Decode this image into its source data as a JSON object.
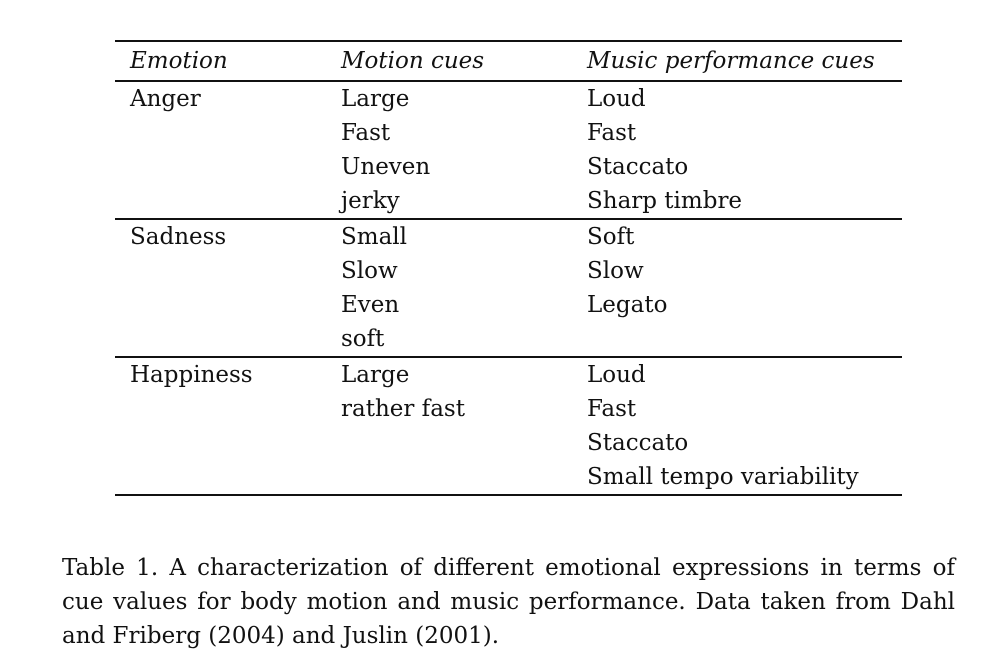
{
  "table": {
    "headers": [
      "Emotion",
      "Motion cues",
      "Music performance cues"
    ],
    "groups": [
      {
        "emotion": "Anger",
        "rows": [
          [
            "Large",
            "Loud"
          ],
          [
            "Fast",
            "Fast"
          ],
          [
            "Uneven",
            "Staccato"
          ],
          [
            "jerky",
            "Sharp timbre"
          ]
        ]
      },
      {
        "emotion": "Sadness",
        "rows": [
          [
            "Small",
            "Soft"
          ],
          [
            "Slow",
            "Slow"
          ],
          [
            "Even",
            "Legato"
          ],
          [
            "soft",
            ""
          ]
        ]
      },
      {
        "emotion": "Happiness",
        "rows": [
          [
            "Large",
            "Loud"
          ],
          [
            "rather fast",
            "Fast"
          ],
          [
            "",
            "Staccato"
          ],
          [
            "",
            "Small tempo variability"
          ]
        ]
      }
    ]
  },
  "caption": "Table 1. A characterization of different emotional expressions in terms of cue values for body motion and music performance. Data taken from Dahl and Friberg (2004) and Juslin (2001)."
}
